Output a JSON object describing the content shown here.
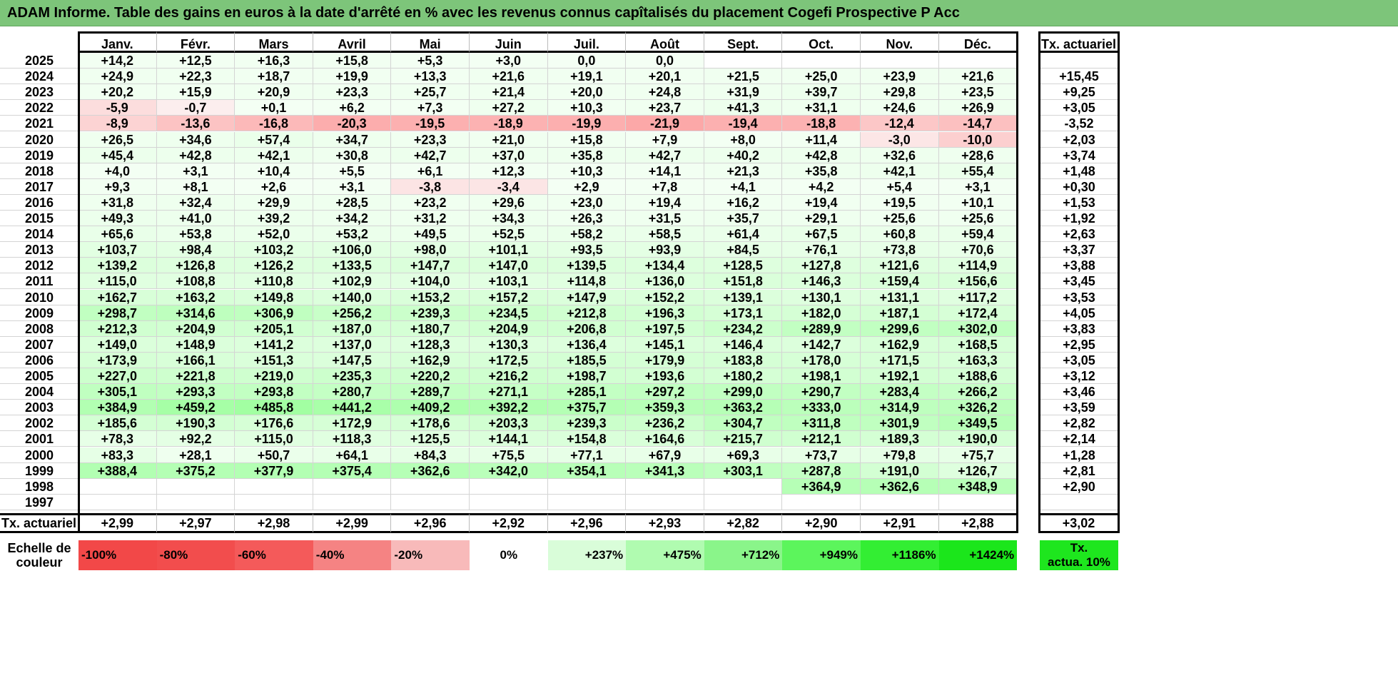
{
  "title": "ADAM Informe. Table des gains en euros à la date d'arrêté en % avec les revenus connus capîtalisés du placement Cogefi Prospective P Acc",
  "months": [
    "Janv.",
    "Févr.",
    "Mars",
    "Avril",
    "Mai",
    "Juin",
    "Juil.",
    "Août",
    "Sept.",
    "Oct.",
    "Nov.",
    "Déc."
  ],
  "rate_header": "Tx. actuariel",
  "rows": [
    {
      "year": "2025",
      "values": [
        "+14,2",
        "+12,5",
        "+16,3",
        "+15,8",
        "+5,3",
        "+3,0",
        "0,0",
        "0,0",
        "",
        "",
        "",
        ""
      ],
      "rate": ""
    },
    {
      "year": "2024",
      "values": [
        "+24,9",
        "+22,3",
        "+18,7",
        "+19,9",
        "+13,3",
        "+21,6",
        "+19,1",
        "+20,1",
        "+21,5",
        "+25,0",
        "+23,9",
        "+21,6"
      ],
      "rate": "+15,45"
    },
    {
      "year": "2023",
      "values": [
        "+20,2",
        "+15,9",
        "+20,9",
        "+23,3",
        "+25,7",
        "+21,4",
        "+20,0",
        "+24,8",
        "+31,9",
        "+39,7",
        "+29,8",
        "+23,5"
      ],
      "rate": "+9,25"
    },
    {
      "year": "2022",
      "values": [
        "-5,9",
        "-0,7",
        "+0,1",
        "+6,2",
        "+7,3",
        "+27,2",
        "+10,3",
        "+23,7",
        "+41,3",
        "+31,1",
        "+24,6",
        "+26,9"
      ],
      "rate": "+3,05"
    },
    {
      "year": "2021",
      "values": [
        "-8,9",
        "-13,6",
        "-16,8",
        "-20,3",
        "-19,5",
        "-18,9",
        "-19,9",
        "-21,9",
        "-19,4",
        "-18,8",
        "-12,4",
        "-14,7"
      ],
      "rate": "-3,52"
    },
    {
      "year": "2020",
      "values": [
        "+26,5",
        "+34,6",
        "+57,4",
        "+34,7",
        "+23,3",
        "+21,0",
        "+15,8",
        "+7,9",
        "+8,0",
        "+11,4",
        "-3,0",
        "-10,0"
      ],
      "rate": "+2,03"
    },
    {
      "year": "2019",
      "values": [
        "+45,4",
        "+42,8",
        "+42,1",
        "+30,8",
        "+42,7",
        "+37,0",
        "+35,8",
        "+42,7",
        "+40,2",
        "+42,8",
        "+32,6",
        "+28,6"
      ],
      "rate": "+3,74"
    },
    {
      "year": "2018",
      "values": [
        "+4,0",
        "+3,1",
        "+10,4",
        "+5,5",
        "+6,1",
        "+12,3",
        "+10,3",
        "+14,1",
        "+21,3",
        "+35,8",
        "+42,1",
        "+55,4"
      ],
      "rate": "+1,48"
    },
    {
      "year": "2017",
      "values": [
        "+9,3",
        "+8,1",
        "+2,6",
        "+3,1",
        "-3,8",
        "-3,4",
        "+2,9",
        "+7,8",
        "+4,1",
        "+4,2",
        "+5,4",
        "+3,1"
      ],
      "rate": "+0,30"
    },
    {
      "year": "2016",
      "values": [
        "+31,8",
        "+32,4",
        "+29,9",
        "+28,5",
        "+23,2",
        "+29,6",
        "+23,0",
        "+19,4",
        "+16,2",
        "+19,4",
        "+19,5",
        "+10,1"
      ],
      "rate": "+1,53"
    },
    {
      "year": "2015",
      "values": [
        "+49,3",
        "+41,0",
        "+39,2",
        "+34,2",
        "+31,2",
        "+34,3",
        "+26,3",
        "+31,5",
        "+35,7",
        "+29,1",
        "+25,6",
        "+25,6"
      ],
      "rate": "+1,92"
    },
    {
      "year": "2014",
      "values": [
        "+65,6",
        "+53,8",
        "+52,0",
        "+53,2",
        "+49,5",
        "+52,5",
        "+58,2",
        "+58,5",
        "+61,4",
        "+67,5",
        "+60,8",
        "+59,4"
      ],
      "rate": "+2,63"
    },
    {
      "year": "2013",
      "values": [
        "+103,7",
        "+98,4",
        "+103,2",
        "+106,0",
        "+98,0",
        "+101,1",
        "+93,5",
        "+93,9",
        "+84,5",
        "+76,1",
        "+73,8",
        "+70,6"
      ],
      "rate": "+3,37"
    },
    {
      "year": "2012",
      "values": [
        "+139,2",
        "+126,8",
        "+126,2",
        "+133,5",
        "+147,7",
        "+147,0",
        "+139,5",
        "+134,4",
        "+128,5",
        "+127,8",
        "+121,6",
        "+114,9"
      ],
      "rate": "+3,88"
    },
    {
      "year": "2011",
      "values": [
        "+115,0",
        "+108,8",
        "+110,8",
        "+102,9",
        "+104,0",
        "+103,1",
        "+114,8",
        "+136,0",
        "+151,8",
        "+146,3",
        "+159,4",
        "+156,6"
      ],
      "rate": "+3,45"
    },
    {
      "year": "2010",
      "values": [
        "+162,7",
        "+163,2",
        "+149,8",
        "+140,0",
        "+153,2",
        "+157,2",
        "+147,9",
        "+152,2",
        "+139,1",
        "+130,1",
        "+131,1",
        "+117,2"
      ],
      "rate": "+3,53"
    },
    {
      "year": "2009",
      "values": [
        "+298,7",
        "+314,6",
        "+306,9",
        "+256,2",
        "+239,3",
        "+234,5",
        "+212,8",
        "+196,3",
        "+173,1",
        "+182,0",
        "+187,1",
        "+172,4"
      ],
      "rate": "+4,05"
    },
    {
      "year": "2008",
      "values": [
        "+212,3",
        "+204,9",
        "+205,1",
        "+187,0",
        "+180,7",
        "+204,9",
        "+206,8",
        "+197,5",
        "+234,2",
        "+289,9",
        "+299,6",
        "+302,0"
      ],
      "rate": "+3,83"
    },
    {
      "year": "2007",
      "values": [
        "+149,0",
        "+148,9",
        "+141,2",
        "+137,0",
        "+128,3",
        "+130,3",
        "+136,4",
        "+145,1",
        "+146,4",
        "+142,7",
        "+162,9",
        "+168,5"
      ],
      "rate": "+2,95"
    },
    {
      "year": "2006",
      "values": [
        "+173,9",
        "+166,1",
        "+151,3",
        "+147,5",
        "+162,9",
        "+172,5",
        "+185,5",
        "+179,9",
        "+183,8",
        "+178,0",
        "+171,5",
        "+163,3"
      ],
      "rate": "+3,05"
    },
    {
      "year": "2005",
      "values": [
        "+227,0",
        "+221,8",
        "+219,0",
        "+235,3",
        "+220,2",
        "+216,2",
        "+198,7",
        "+193,6",
        "+180,2",
        "+198,1",
        "+192,1",
        "+188,6"
      ],
      "rate": "+3,12"
    },
    {
      "year": "2004",
      "values": [
        "+305,1",
        "+293,3",
        "+293,8",
        "+280,7",
        "+289,7",
        "+271,1",
        "+285,1",
        "+297,2",
        "+299,0",
        "+290,7",
        "+283,4",
        "+266,2"
      ],
      "rate": "+3,46"
    },
    {
      "year": "2003",
      "values": [
        "+384,9",
        "+459,2",
        "+485,8",
        "+441,2",
        "+409,2",
        "+392,2",
        "+375,7",
        "+359,3",
        "+363,2",
        "+333,0",
        "+314,9",
        "+326,2"
      ],
      "rate": "+3,59"
    },
    {
      "year": "2002",
      "values": [
        "+185,6",
        "+190,3",
        "+176,6",
        "+172,9",
        "+178,6",
        "+203,3",
        "+239,3",
        "+236,2",
        "+304,7",
        "+311,8",
        "+301,9",
        "+349,5"
      ],
      "rate": "+2,82"
    },
    {
      "year": "2001",
      "values": [
        "+78,3",
        "+92,2",
        "+115,0",
        "+118,3",
        "+125,5",
        "+144,1",
        "+154,8",
        "+164,6",
        "+215,7",
        "+212,1",
        "+189,3",
        "+190,0"
      ],
      "rate": "+2,14"
    },
    {
      "year": "2000",
      "values": [
        "+83,3",
        "+28,1",
        "+50,7",
        "+64,1",
        "+84,3",
        "+75,5",
        "+77,1",
        "+67,9",
        "+69,3",
        "+73,7",
        "+79,8",
        "+75,7"
      ],
      "rate": "+1,28"
    },
    {
      "year": "1999",
      "values": [
        "+388,4",
        "+375,2",
        "+377,9",
        "+375,4",
        "+362,6",
        "+342,0",
        "+354,1",
        "+341,3",
        "+303,1",
        "+287,8",
        "+191,0",
        "+126,7"
      ],
      "rate": "+2,81"
    },
    {
      "year": "1998",
      "values": [
        "",
        "",
        "",
        "",
        "",
        "",
        "",
        "",
        "",
        "+364,9",
        "+362,6",
        "+348,9"
      ],
      "rate": "+2,90"
    },
    {
      "year": "1997",
      "values": [
        "",
        "",
        "",
        "",
        "",
        "",
        "",
        "",
        "",
        "",
        "",
        ""
      ],
      "rate": ""
    }
  ],
  "totals": {
    "label": "Tx. actuariel",
    "values": [
      "+2,99",
      "+2,97",
      "+2,98",
      "+2,99",
      "+2,96",
      "+2,92",
      "+2,96",
      "+2,93",
      "+2,82",
      "+2,90",
      "+2,91",
      "+2,88"
    ],
    "rate": "+3,02"
  },
  "scale": {
    "label_line1": "Echelle de",
    "label_line2": "couleur",
    "items": [
      {
        "label": "-100%",
        "color": "#f24848",
        "align": "left"
      },
      {
        "label": "-80%",
        "color": "#f24d4d",
        "align": "left"
      },
      {
        "label": "-60%",
        "color": "#f45a5a",
        "align": "left"
      },
      {
        "label": "-40%",
        "color": "#f58383",
        "align": "left"
      },
      {
        "label": "-20%",
        "color": "#f8baba",
        "align": "left"
      },
      {
        "label": "0%",
        "color": "#ffffff",
        "align": "center"
      },
      {
        "label": "+237%",
        "color": "#d9fdd9",
        "align": "right"
      },
      {
        "label": "+475%",
        "color": "#b0fbb0",
        "align": "right"
      },
      {
        "label": "+712%",
        "color": "#8af58a",
        "align": "right"
      },
      {
        "label": "+949%",
        "color": "#5cf55c",
        "align": "right"
      },
      {
        "label": "+1186%",
        "color": "#33ee33",
        "align": "right"
      },
      {
        "label": "+1424%",
        "color": "#1be61b",
        "align": "right"
      }
    ],
    "rate_line1": "Tx.",
    "rate_line2": "actua. 10%",
    "rate_color": "#1ee61e"
  }
}
